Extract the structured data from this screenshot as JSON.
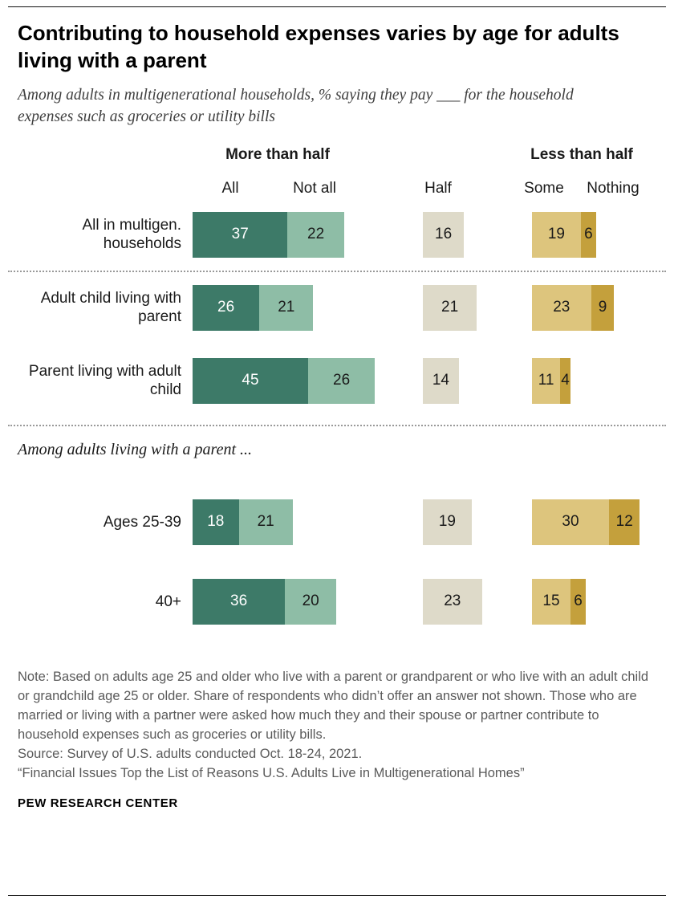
{
  "page": {
    "title": "Contributing to household expenses varies by age for adults living with a parent",
    "subtitle": "Among adults in multigenerational households, % saying they pay ___ for the household expenses such as groceries or utility bills",
    "section_label": "Among adults living with a parent ...",
    "note": "Note: Based on adults age 25 and older who live with a parent or grandparent or who live with an adult child or grandchild age 25 or older. Share of respondents who didn’t offer an answer not shown. Those who are married or living with a partner were asked how much they and their spouse or partner contribute to household expenses such as groceries or utility bills.",
    "source": "Source: Survey of U.S. adults conducted Oct. 18-24, 2021.",
    "quote": "“Financial Issues Top the List of Reasons U.S. Adults Live in Multigenerational Homes”",
    "brand": "PEW RESEARCH CENTER"
  },
  "chart_data": {
    "type": "bar",
    "orientation": "horizontal",
    "unit": "%",
    "title": "Contributing to household expenses varies by age for adults living with a parent",
    "subtitle": "Among adults in multigenerational households, % saying they pay ___ for the household expenses such as groceries or utility bills",
    "legend_position": "top-column-headers",
    "grid": false,
    "xlim": [
      0,
      50
    ],
    "header": {
      "more_than_half": "More than half",
      "less_than_half": "Less than half",
      "all": "All",
      "not_all": "Not all",
      "half": "Half",
      "some": "Some",
      "nothing": "Nothing"
    },
    "series_keys": [
      "all",
      "not_all",
      "half",
      "some",
      "nothing"
    ],
    "rows": [
      {
        "label": "All in multigen. households",
        "values": {
          "all": 37,
          "not_all": 22,
          "half": 16,
          "some": 19,
          "nothing": 6
        }
      },
      {
        "label": "Adult child living with parent",
        "values": {
          "all": 26,
          "not_all": 21,
          "half": 21,
          "some": 23,
          "nothing": 9
        }
      },
      {
        "label": "Parent living with adult child",
        "values": {
          "all": 45,
          "not_all": 26,
          "half": 14,
          "some": 11,
          "nothing": 4
        }
      },
      {
        "label": "Ages 25-39",
        "values": {
          "all": 18,
          "not_all": 21,
          "half": 19,
          "some": 30,
          "nothing": 12
        }
      },
      {
        "label": "40+",
        "values": {
          "all": 36,
          "not_all": 20,
          "half": 23,
          "some": 15,
          "nothing": 6
        }
      }
    ],
    "colors": {
      "all": "#3d7a68",
      "not_all": "#8ebda6",
      "half": "#dedac9",
      "some": "#ddc57d",
      "nothing": "#c4a03c"
    },
    "value_text_colors": {
      "on_all": "#ffffff",
      "default": "#1a1a1a"
    }
  }
}
